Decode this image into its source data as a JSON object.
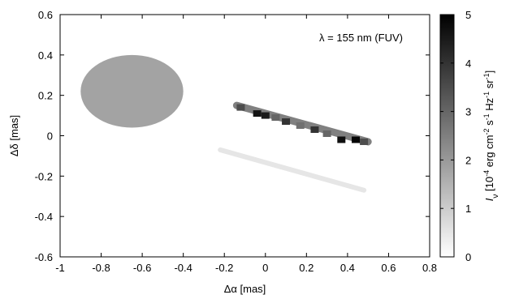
{
  "chart_data": {
    "type": "heatmap",
    "annotation": "λ = 155 nm (FUV)",
    "xlabel": "Δα [mas]",
    "ylabel": "Δδ [mas]",
    "colorbar_label": "I_ν [10^-4 erg cm^-2 s^-1 Hz^-1 sr^-1]",
    "colorbar_label_parts": {
      "symbol": "I",
      "subscript": "ν",
      "open": " [10",
      "exp1": "-4",
      "unit_erg_cm": " erg cm",
      "exp2": "-2",
      "unit_s": " s",
      "exp3": "-1",
      "unit_hz": " Hz",
      "exp4": "-1",
      "unit_sr": " sr",
      "exp5": "-1",
      "close": "]"
    },
    "xlim": [
      -1,
      0.8
    ],
    "ylim": [
      -0.6,
      0.6
    ],
    "xticks": [
      "-1",
      "-0.8",
      "-0.6",
      "-0.4",
      "-0.2",
      "0",
      "0.2",
      "0.4",
      "0.6",
      "0.8"
    ],
    "yticks": [
      "-0.6",
      "-0.4",
      "-0.2",
      "0",
      "0.2",
      "0.4",
      "0.6"
    ],
    "colorbar_range": [
      0,
      5
    ],
    "colorbar_ticks": [
      "0",
      "1",
      "2",
      "3",
      "4",
      "5"
    ],
    "colormap": "white-to-black",
    "grid": false,
    "features": [
      {
        "kind": "ellipse",
        "center": [
          -0.65,
          0.22
        ],
        "semi_axes": [
          0.25,
          0.18
        ],
        "value": 1.8
      },
      {
        "kind": "band",
        "from": [
          -0.14,
          0.15
        ],
        "to": [
          0.5,
          -0.03
        ],
        "value": 2.5
      },
      {
        "kind": "band",
        "from": [
          -0.22,
          -0.07
        ],
        "to": [
          0.48,
          -0.27
        ],
        "value": 0.5
      }
    ],
    "peaks": [
      {
        "x": -0.12,
        "y": 0.14,
        "value": 3.5
      },
      {
        "x": -0.04,
        "y": 0.11,
        "value": 4.6
      },
      {
        "x": 0.0,
        "y": 0.1,
        "value": 4.5
      },
      {
        "x": 0.05,
        "y": 0.09,
        "value": 3.0
      },
      {
        "x": 0.1,
        "y": 0.07,
        "value": 4.0
      },
      {
        "x": 0.17,
        "y": 0.05,
        "value": 2.8
      },
      {
        "x": 0.24,
        "y": 0.03,
        "value": 4.0
      },
      {
        "x": 0.3,
        "y": 0.01,
        "value": 3.0
      },
      {
        "x": 0.37,
        "y": -0.02,
        "value": 4.7
      },
      {
        "x": 0.44,
        "y": -0.02,
        "value": 4.9
      },
      {
        "x": 0.48,
        "y": -0.03,
        "value": 3.5
      }
    ]
  }
}
